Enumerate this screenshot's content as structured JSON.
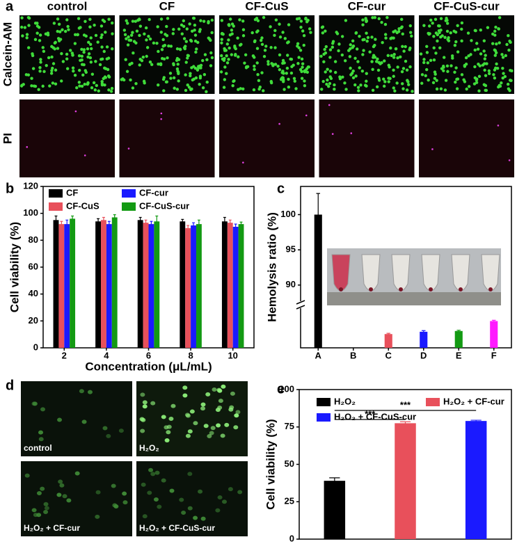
{
  "panel_labels": [
    "a",
    "b",
    "c",
    "d",
    "e"
  ],
  "microscopy_a": {
    "columns": [
      "control",
      "CF",
      "CF-CuS",
      "CF-cur",
      "CF-CuS-cur"
    ],
    "rows": [
      "Calcein-AM",
      "PI"
    ]
  },
  "microscopy_d": {
    "labels": [
      "control",
      "H₂O₂",
      "H₂O₂ + CF-cur",
      "H₂O₂ + CF-CuS-cur"
    ]
  },
  "chart_data": [
    {
      "type": "bar",
      "ylabel": "Cell viability (%)",
      "xlabel": "Concentration (μL/mL)",
      "categories": [
        "2",
        "4",
        "6",
        "8",
        "10"
      ],
      "series": [
        {
          "name": "CF",
          "color": "#000000",
          "values": [
            95,
            94,
            95,
            94,
            94
          ],
          "errors": [
            3,
            2,
            2,
            1.5,
            3
          ]
        },
        {
          "name": "CF-CuS",
          "color": "#e8505b",
          "values": [
            92,
            95,
            93,
            89,
            93
          ],
          "errors": [
            2,
            2,
            2,
            2,
            2
          ]
        },
        {
          "name": "CF-cur",
          "color": "#1a1aff",
          "values": [
            92,
            92,
            92,
            91,
            90
          ],
          "errors": [
            3,
            2,
            2,
            2,
            2
          ]
        },
        {
          "name": "CF-CuS-cur",
          "color": "#139a13",
          "values": [
            96,
            97,
            94,
            92,
            92
          ],
          "errors": [
            2,
            2,
            4,
            3,
            1.5
          ]
        }
      ],
      "ylim": [
        0,
        120
      ],
      "yticks": [
        0,
        20,
        40,
        60,
        80,
        100,
        120
      ]
    },
    {
      "type": "bar",
      "ylabel": "Hemolysis ratio (%)",
      "categories": [
        "A",
        "B",
        "C",
        "D",
        "E",
        "F"
      ],
      "values": [
        100,
        0,
        1.8,
        2.1,
        2.2,
        3.5
      ],
      "errors": [
        3,
        0,
        0.1,
        0.15,
        0.1,
        0.1
      ],
      "colors": [
        "#000000",
        "#000000",
        "#e8505b",
        "#1a1aff",
        "#139a13",
        "#ff1aff"
      ],
      "ylim": [
        0,
        104
      ],
      "axis_break": [
        5,
        88
      ],
      "yticks": [
        90,
        95,
        100
      ]
    },
    {
      "type": "bar",
      "ylabel": "Cell viability (%)",
      "series": [
        {
          "name": "H₂O₂",
          "color": "#000000",
          "values": [
            39
          ],
          "errors": [
            2
          ]
        },
        {
          "name": "H₂O₂ + CF-cur",
          "color": "#e8505b",
          "values": [
            77.5
          ],
          "errors": [
            1
          ]
        },
        {
          "name": "H₂O₂ + CF-CuS-cur",
          "color": "#1a1aff",
          "values": [
            79
          ],
          "errors": [
            0.5
          ]
        }
      ],
      "annotations": [
        "***",
        "***"
      ],
      "ylim": [
        0,
        100
      ],
      "yticks": [
        0,
        25,
        50,
        75,
        100
      ]
    }
  ]
}
